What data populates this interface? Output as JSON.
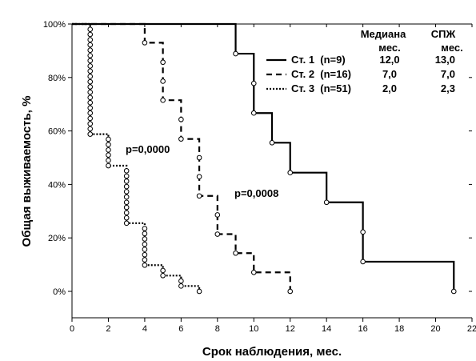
{
  "chart_data": {
    "type": "line",
    "subtype": "kaplan-meier-step",
    "title": "",
    "xlabel": "Срок наблюдения, мес.",
    "ylabel": "Общая выживаемость, %",
    "xlim": [
      0,
      22
    ],
    "ylim": [
      -10,
      100
    ],
    "xticks": [
      0,
      2,
      4,
      6,
      8,
      10,
      12,
      14,
      16,
      18,
      20,
      22
    ],
    "yticks": [
      0,
      20,
      40,
      60,
      80,
      100
    ],
    "ytick_labels": [
      "0%",
      "20%",
      "40%",
      "60%",
      "80%",
      "100%"
    ],
    "grid": false,
    "legend": {
      "placement": "top-right",
      "header": {
        "median": "Медиана",
        "median_unit": "мес.",
        "pfs": "СПЖ",
        "pfs_unit": "мес."
      },
      "rows": [
        {
          "label": "Ст. 1  (n=9)",
          "median": "12,0",
          "pfs": "13,0",
          "style": "solid"
        },
        {
          "label": "Ст. 2  (n=16)",
          "median": "7,0",
          "pfs": "7,0",
          "style": "dashed"
        },
        {
          "label": "Ст. 3  (n=51)",
          "median": "2,0",
          "pfs": "2,3",
          "style": "dotted"
        }
      ]
    },
    "annotations": [
      "p=0,0000",
      "p=0,0008"
    ],
    "series": [
      {
        "name": "Ст. 1  (n=9)",
        "style": "solid",
        "steps": [
          [
            0,
            100
          ],
          [
            9,
            88.9
          ],
          [
            10,
            66.7
          ],
          [
            11,
            55.6
          ],
          [
            12,
            44.4
          ],
          [
            14,
            33.3
          ],
          [
            16,
            11.1
          ],
          [
            21,
            0
          ]
        ],
        "markers": [
          [
            9,
            88.9
          ],
          [
            10,
            77.8
          ],
          [
            10,
            66.7
          ],
          [
            11,
            55.6
          ],
          [
            12,
            44.4
          ],
          [
            14,
            33.3
          ],
          [
            16,
            22.2
          ],
          [
            16,
            11.1
          ],
          [
            21,
            0
          ]
        ]
      },
      {
        "name": "Ст. 2  (n=16)",
        "style": "dashed",
        "steps": [
          [
            0,
            100
          ],
          [
            4,
            93
          ],
          [
            5,
            71.5
          ],
          [
            6,
            57
          ],
          [
            7,
            35.7
          ],
          [
            8,
            21.4
          ],
          [
            9,
            14.3
          ],
          [
            10,
            7.1
          ],
          [
            12,
            0
          ]
        ],
        "markers": [
          [
            4,
            93
          ],
          [
            5,
            85.7
          ],
          [
            5,
            78.6
          ],
          [
            5,
            71.5
          ],
          [
            6,
            64.3
          ],
          [
            6,
            57
          ],
          [
            7,
            50
          ],
          [
            7,
            42.9
          ],
          [
            7,
            35.7
          ],
          [
            8,
            28.6
          ],
          [
            8,
            21.4
          ],
          [
            9,
            14.3
          ],
          [
            10,
            7.1
          ],
          [
            12,
            0
          ]
        ]
      },
      {
        "name": "Ст. 3  (n=51)",
        "style": "dotted",
        "steps": [
          [
            0,
            100
          ],
          [
            1,
            58.8
          ],
          [
            2,
            47
          ],
          [
            3,
            25.5
          ],
          [
            4,
            9.8
          ],
          [
            5,
            5.9
          ],
          [
            6,
            2
          ],
          [
            7,
            0
          ]
        ],
        "markers": [
          [
            1,
            98
          ],
          [
            1,
            96.1
          ],
          [
            1,
            94.1
          ],
          [
            1,
            92.2
          ],
          [
            1,
            90.2
          ],
          [
            1,
            88.2
          ],
          [
            1,
            86.3
          ],
          [
            1,
            84.3
          ],
          [
            1,
            82.4
          ],
          [
            1,
            80.4
          ],
          [
            1,
            78.4
          ],
          [
            1,
            76.5
          ],
          [
            1,
            74.5
          ],
          [
            1,
            72.5
          ],
          [
            1,
            70.6
          ],
          [
            1,
            68.6
          ],
          [
            1,
            66.7
          ],
          [
            1,
            64.7
          ],
          [
            1,
            62.7
          ],
          [
            1,
            60.8
          ],
          [
            1,
            58.8
          ],
          [
            2,
            56.9
          ],
          [
            2,
            54.9
          ],
          [
            2,
            52.9
          ],
          [
            2,
            51
          ],
          [
            2,
            49
          ],
          [
            2,
            47
          ],
          [
            3,
            45.1
          ],
          [
            3,
            43.1
          ],
          [
            3,
            41.2
          ],
          [
            3,
            39.2
          ],
          [
            3,
            37.3
          ],
          [
            3,
            35.3
          ],
          [
            3,
            33.3
          ],
          [
            3,
            31.4
          ],
          [
            3,
            29.4
          ],
          [
            3,
            27.5
          ],
          [
            3,
            25.5
          ],
          [
            4,
            23.5
          ],
          [
            4,
            21.6
          ],
          [
            4,
            19.6
          ],
          [
            4,
            17.6
          ],
          [
            4,
            15.7
          ],
          [
            4,
            13.7
          ],
          [
            4,
            11.8
          ],
          [
            4,
            9.8
          ],
          [
            5,
            7.8
          ],
          [
            5,
            5.9
          ],
          [
            6,
            3.9
          ],
          [
            6,
            2
          ],
          [
            7,
            0
          ]
        ]
      }
    ]
  }
}
